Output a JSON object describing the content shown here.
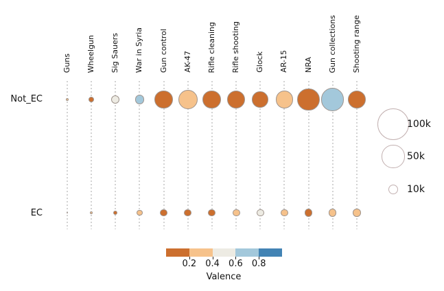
{
  "chart_data": {
    "type": "scatter",
    "subtype": "balloon-plot",
    "title": "",
    "xlabel": "",
    "ylabel": "",
    "grid": "dotted-vertical",
    "categories": [
      "Guns",
      "Wheelgun",
      "Sig Sauers",
      "War in Syria",
      "Gun control",
      "AK-47",
      "Rifle cleaning",
      "Rifle shooting",
      "Glock",
      "AR-15",
      "NRA",
      "Gun collections",
      "Shooting range"
    ],
    "rows": [
      "Not_EC",
      "EC"
    ],
    "series": [
      {
        "name": "Not_EC",
        "counts": [
          1100,
          2900,
          6600,
          8400,
          33000,
          36000,
          33000,
          31000,
          26000,
          29000,
          47000,
          50000,
          31000
        ],
        "valence": [
          0.3,
          0.1,
          0.5,
          0.7,
          0.1,
          0.3,
          0.1,
          0.1,
          0.1,
          0.3,
          0.1,
          0.7,
          0.1
        ]
      },
      {
        "name": "EC",
        "counts": [
          300,
          700,
          1700,
          3700,
          5500,
          5500,
          5500,
          5500,
          5500,
          5500,
          6000,
          6000,
          6000
        ],
        "valence": [
          0.1,
          0.3,
          0.1,
          0.3,
          0.1,
          0.1,
          0.1,
          0.3,
          0.5,
          0.3,
          0.1,
          0.3,
          0.3
        ]
      }
    ],
    "size_legend": {
      "area_proportional": true,
      "entries": [
        {
          "label": "100k",
          "value": 100000
        },
        {
          "label": "50k",
          "value": 50000
        },
        {
          "label": "10k",
          "value": 10000
        }
      ]
    },
    "colorbar": {
      "label": "Valence",
      "range": [
        0,
        1
      ],
      "ticks": [
        0.2,
        0.4,
        0.6,
        0.8
      ],
      "tick_labels": [
        "0.2",
        "0.4",
        "0.6",
        "0.8"
      ],
      "bin_bounds": [
        0,
        0.2,
        0.4,
        0.6,
        0.8,
        1
      ],
      "bin_colors": [
        "#cc6f2e",
        "#f6c28b",
        "#edebe3",
        "#a3c8db",
        "#4283b4"
      ]
    }
  },
  "colors": {
    "background": "#ffffff",
    "bubble_edge": "#9e938c",
    "legend_circle_edge": "#c2b0b0",
    "grid_dot": "#d2d2d2",
    "text": "#111111"
  }
}
